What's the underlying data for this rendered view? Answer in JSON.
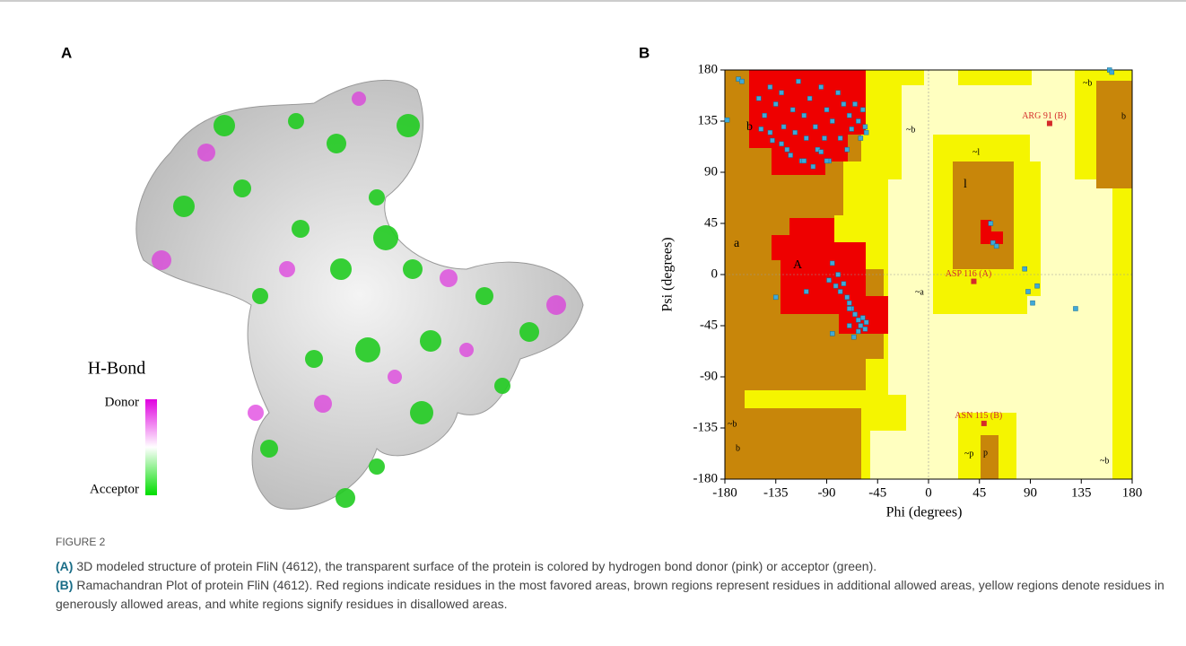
{
  "figure": {
    "panel_a": {
      "label": "A",
      "legend_title": "H-Bond",
      "legend_top": "Donor",
      "legend_bottom": "Acceptor"
    },
    "panel_b": {
      "label": "B"
    },
    "caption": {
      "label": "FIGURE 2",
      "a_tag": "(A)",
      "a_text": " 3D modeled structure of protein FliN (4612), the transparent surface of the protein is colored by hydrogen bond donor (pink) or acceptor (green).",
      "b_tag": "(B)",
      "b_text": " Ramachandran Plot of protein FliN (4612). Red regions indicate residues in the most favored areas, brown regions represent residues in additional allowed areas, yellow regions denote residues in generously allowed areas, and white regions signify residues in disallowed areas."
    }
  },
  "chart_data": {
    "type": "scatter",
    "xlabel": "Phi (degrees)",
    "ylabel": "Psi (degrees)",
    "xlim": [
      -180,
      180
    ],
    "ylim": [
      -180,
      180
    ],
    "xticks": [
      -180,
      -135,
      -90,
      -45,
      0,
      45,
      90,
      135,
      180
    ],
    "yticks": [
      -180,
      -135,
      -90,
      -45,
      0,
      45,
      90,
      135,
      180
    ],
    "region_labels": [
      "b",
      "a",
      "A",
      "l",
      "~b",
      "~l",
      "~a",
      "~b",
      "b",
      "~b",
      "b",
      "~p",
      "p",
      "~b"
    ],
    "series": [
      {
        "color": "#3fa9d8",
        "x": [
          -178,
          -168,
          -165,
          -150,
          -148,
          -145,
          -140,
          -138,
          -135,
          -130,
          -128,
          -125,
          -120,
          -118,
          -115,
          -112,
          -110,
          -108,
          -105,
          -100,
          -98,
          -95,
          -92,
          -90,
          -88,
          -85,
          -80,
          -78,
          -75,
          -72,
          -70,
          -68,
          -65,
          -62,
          -60,
          -58,
          -56,
          -55,
          -140,
          -130,
          -122,
          -110,
          -102,
          -95,
          -90,
          -88,
          -85,
          -82,
          -80,
          -78,
          -75,
          -72,
          -70,
          -68,
          -65,
          -62,
          -60,
          -58,
          -56,
          -55,
          -62,
          -66,
          -70,
          -108,
          -135,
          -85,
          -70,
          55,
          57,
          60,
          85,
          88,
          92,
          96,
          130,
          160,
          162
        ],
        "y": [
          136,
          172,
          170,
          155,
          128,
          140,
          165,
          118,
          150,
          160,
          130,
          110,
          145,
          125,
          170,
          100,
          140,
          120,
          155,
          130,
          110,
          165,
          120,
          145,
          100,
          135,
          160,
          120,
          150,
          110,
          140,
          128,
          150,
          135,
          120,
          145,
          130,
          125,
          125,
          115,
          105,
          100,
          95,
          108,
          100,
          -5,
          10,
          -10,
          0,
          -15,
          -8,
          -20,
          -25,
          -30,
          -35,
          -40,
          -45,
          -38,
          -48,
          -42,
          -50,
          -55,
          -30,
          -15,
          -20,
          -52,
          -45,
          45,
          28,
          25,
          5,
          -15,
          -25,
          -10,
          -30,
          180,
          178
        ]
      }
    ],
    "labeled_points": [
      {
        "label": "ARG 91 (B)",
        "x": 107,
        "y": 133
      },
      {
        "label": "ASP 116 (A)",
        "x": 40,
        "y": -6
      },
      {
        "label": "ASN 115 (B)",
        "x": 49,
        "y": -131
      }
    ],
    "labeled_color": "#d42a2a"
  }
}
